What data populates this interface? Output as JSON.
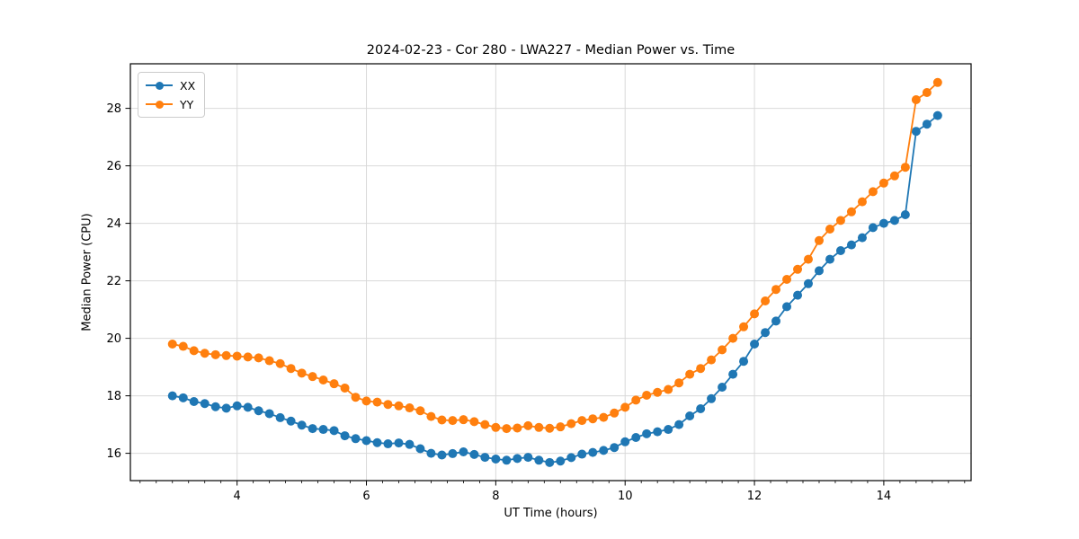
{
  "chart_data": {
    "type": "line",
    "title": "2024-02-23 - Cor 280 - LWA227 - Median Power vs. Time",
    "xlabel": "UT Time (hours)",
    "ylabel": "Median Power (CPU)",
    "xlim": [
      2.35,
      15.35
    ],
    "ylim": [
      15.05,
      29.55
    ],
    "x_major_ticks": [
      4,
      6,
      8,
      10,
      12,
      14
    ],
    "x_minor_step": 0.25,
    "y_major_ticks": [
      16,
      18,
      20,
      22,
      24,
      26,
      28
    ],
    "grid": true,
    "legend_position": "upper left",
    "grid_color": "#d9d9d9",
    "spine_color": "#000000",
    "marker": "circle",
    "x": [
      3.0,
      3.167,
      3.333,
      3.5,
      3.667,
      3.833,
      4.0,
      4.167,
      4.333,
      4.5,
      4.667,
      4.833,
      5.0,
      5.167,
      5.333,
      5.5,
      5.667,
      5.833,
      6.0,
      6.167,
      6.333,
      6.5,
      6.667,
      6.833,
      7.0,
      7.167,
      7.333,
      7.5,
      7.667,
      7.833,
      8.0,
      8.167,
      8.333,
      8.5,
      8.667,
      8.833,
      9.0,
      9.167,
      9.333,
      9.5,
      9.667,
      9.833,
      10.0,
      10.167,
      10.333,
      10.5,
      10.667,
      10.833,
      11.0,
      11.167,
      11.333,
      11.5,
      11.667,
      11.833,
      12.0,
      12.167,
      12.333,
      12.5,
      12.667,
      12.833,
      13.0,
      13.167,
      13.333,
      13.5,
      13.667,
      13.833,
      14.0,
      14.167,
      14.333,
      14.5,
      14.667,
      14.833
    ],
    "series": [
      {
        "name": "XX",
        "color": "#1f77b4",
        "values": [
          18.0,
          17.93,
          17.8,
          17.73,
          17.62,
          17.57,
          17.65,
          17.6,
          17.48,
          17.38,
          17.24,
          17.12,
          16.98,
          16.86,
          16.83,
          16.79,
          16.61,
          16.51,
          16.44,
          16.37,
          16.33,
          16.36,
          16.31,
          16.16,
          16.0,
          15.94,
          15.99,
          16.05,
          15.96,
          15.86,
          15.8,
          15.76,
          15.82,
          15.86,
          15.76,
          15.68,
          15.73,
          15.85,
          15.97,
          16.03,
          16.1,
          16.2,
          16.4,
          16.55,
          16.68,
          16.75,
          16.83,
          17.0,
          17.3,
          17.55,
          17.9,
          18.3,
          18.75,
          19.2,
          19.8,
          20.2,
          20.6,
          21.1,
          21.5,
          21.9,
          22.35,
          22.75,
          23.05,
          23.25,
          23.5,
          23.85,
          24.0,
          24.1,
          24.3,
          27.2,
          27.45,
          27.75
        ]
      },
      {
        "name": "YY",
        "color": "#ff7f0e",
        "values": [
          19.8,
          19.72,
          19.57,
          19.48,
          19.43,
          19.4,
          19.38,
          19.35,
          19.32,
          19.22,
          19.12,
          18.95,
          18.79,
          18.67,
          18.55,
          18.42,
          18.27,
          17.95,
          17.82,
          17.78,
          17.7,
          17.65,
          17.58,
          17.48,
          17.28,
          17.16,
          17.14,
          17.17,
          17.1,
          17.0,
          16.9,
          16.86,
          16.88,
          16.96,
          16.9,
          16.87,
          16.92,
          17.03,
          17.14,
          17.2,
          17.25,
          17.4,
          17.6,
          17.85,
          18.02,
          18.12,
          18.22,
          18.45,
          18.75,
          18.95,
          19.25,
          19.6,
          20.0,
          20.4,
          20.85,
          21.3,
          21.7,
          22.05,
          22.4,
          22.75,
          23.4,
          23.8,
          24.1,
          24.4,
          24.75,
          25.1,
          25.4,
          25.65,
          25.95,
          28.3,
          28.55,
          28.9
        ]
      }
    ]
  }
}
